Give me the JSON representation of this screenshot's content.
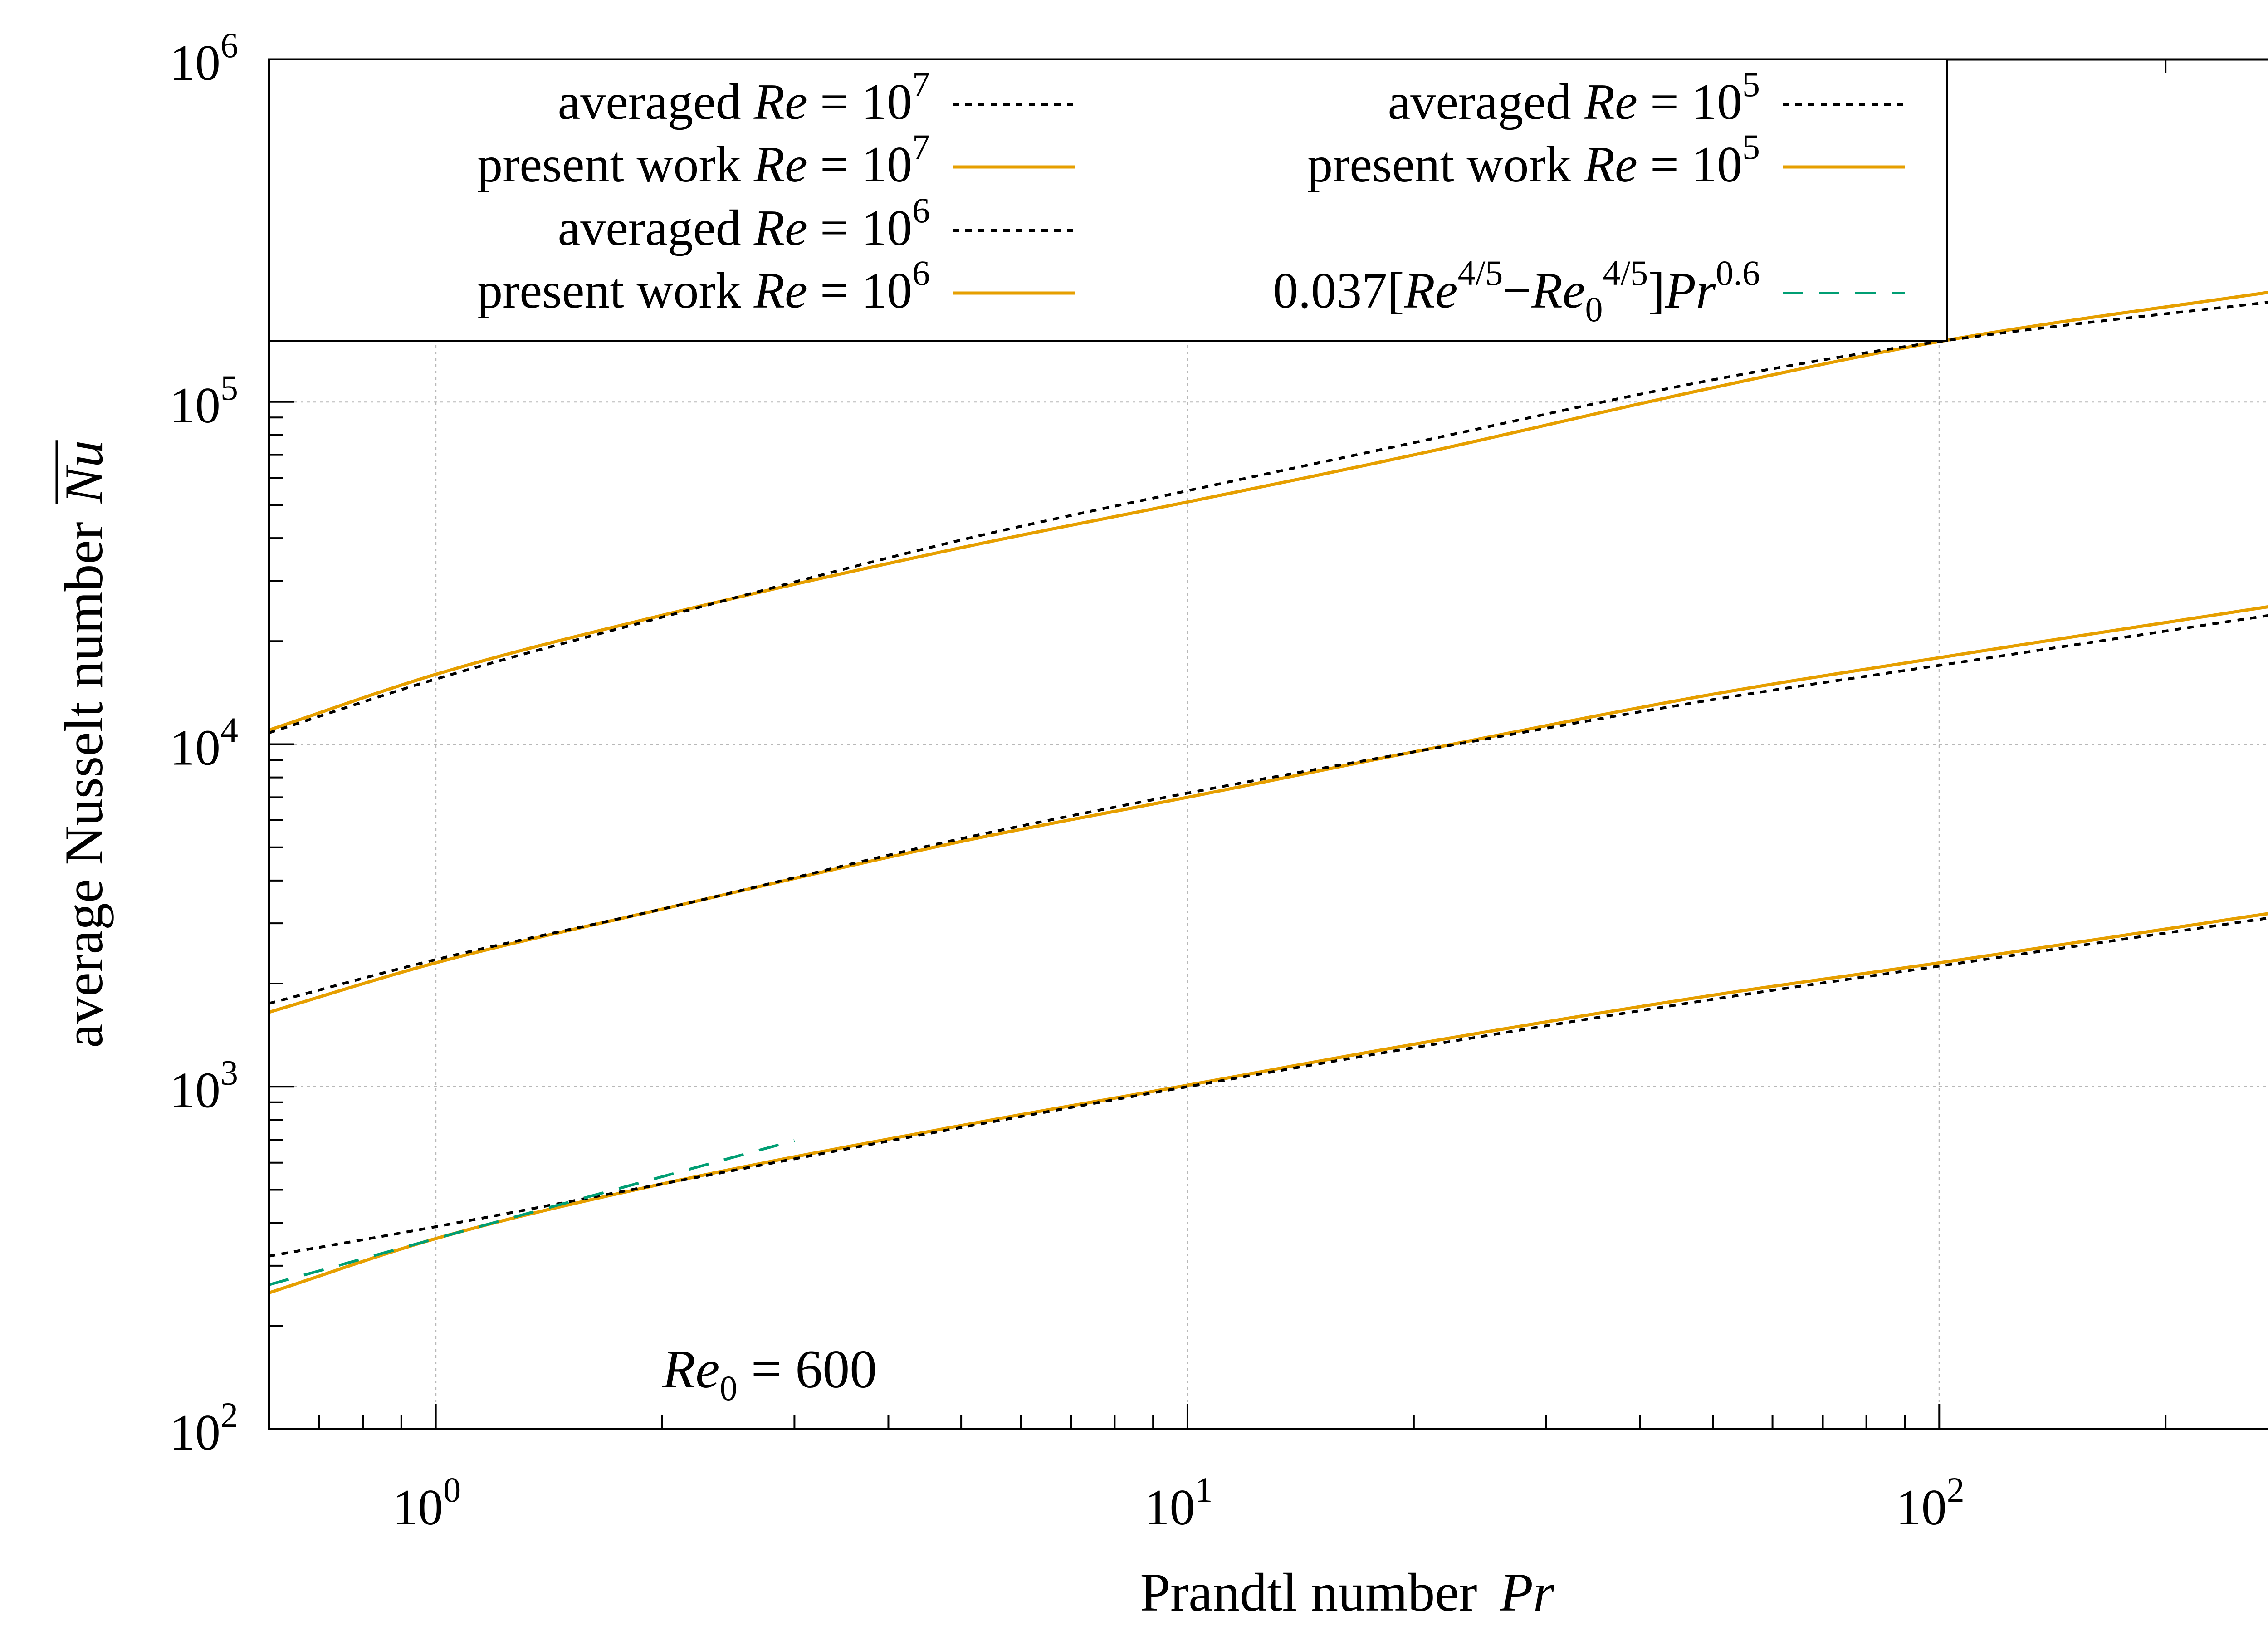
{
  "chart_data": {
    "type": "line",
    "xscale": "log",
    "yscale": "log",
    "xlim": [
      0.6,
      300
    ],
    "ylim": [
      100,
      1000000
    ],
    "grid": true,
    "legend_placement": "top",
    "xlabel": {
      "text": "Prandtl number",
      "var": "Pr"
    },
    "ylabel": {
      "text": "average Nusselt number",
      "var": "Nu"
    },
    "x_ticks": [
      {
        "value": 1,
        "base": "10",
        "exp": "0"
      },
      {
        "value": 10,
        "base": "10",
        "exp": "1"
      },
      {
        "value": 100,
        "base": "10",
        "exp": "2"
      }
    ],
    "y_ticks": [
      {
        "value": 100,
        "base": "10",
        "exp": "2"
      },
      {
        "value": 1000,
        "base": "10",
        "exp": "3"
      },
      {
        "value": 10000,
        "base": "10",
        "exp": "4"
      },
      {
        "value": 100000,
        "base": "10",
        "exp": "5"
      },
      {
        "value": 1000000,
        "base": "10",
        "exp": "6"
      }
    ],
    "annotation": {
      "var": "Re",
      "sub": "0",
      "rest": " = 600"
    },
    "legend": [
      {
        "prefix": "averaged ",
        "var": "Re",
        "mid": " = 10",
        "sup": "7",
        "style": "dotted",
        "color": "#000000"
      },
      {
        "prefix": "present work ",
        "var": "Re",
        "mid": " = 10",
        "sup": "7",
        "style": "solid",
        "color": "#E69F00"
      },
      {
        "prefix": "averaged ",
        "var": "Re",
        "mid": " = 10",
        "sup": "6",
        "style": "dotted",
        "color": "#000000"
      },
      {
        "prefix": "present work ",
        "var": "Re",
        "mid": " = 10",
        "sup": "6",
        "style": "solid",
        "color": "#E69F00"
      },
      {
        "prefix": "averaged ",
        "var": "Re",
        "mid": " = 10",
        "sup": "5",
        "style": "dotted",
        "color": "#000000"
      },
      {
        "prefix": "present work ",
        "var": "Re",
        "mid": " = 10",
        "sup": "5",
        "style": "solid",
        "color": "#E69F00"
      },
      {
        "formula": true,
        "coef": "0.037",
        "sup": "4/5",
        "sub": "0",
        "prsup": "0.6",
        "style": "dashed",
        "color": "#009E73"
      }
    ],
    "series": [
      {
        "key": "averaged_1e7",
        "style": "dotted",
        "color": "#000000",
        "x": [
          0.6,
          1,
          2,
          5,
          10,
          20,
          50,
          100,
          300
        ],
        "y": [
          10800,
          15500,
          23500,
          39500,
          55000,
          76000,
          116000,
          150000,
          200000
        ]
      },
      {
        "key": "present_1e7",
        "style": "solid",
        "color": "#E69F00",
        "x": [
          0.6,
          1,
          2,
          5,
          10,
          20,
          50,
          100,
          300
        ],
        "y": [
          11000,
          16000,
          23800,
          37500,
          51000,
          70000,
          110000,
          150000,
          215000
        ]
      },
      {
        "key": "averaged_1e6",
        "style": "dotted",
        "color": "#000000",
        "x": [
          0.6,
          1,
          2,
          5,
          10,
          20,
          50,
          100,
          300
        ],
        "y": [
          1750,
          2350,
          3300,
          5300,
          7200,
          9500,
          13500,
          17000,
          24500
        ]
      },
      {
        "key": "present_1e6",
        "style": "solid",
        "color": "#E69F00",
        "x": [
          0.6,
          1,
          2,
          5,
          10,
          20,
          50,
          100,
          300
        ],
        "y": [
          1650,
          2300,
          3300,
          5200,
          7000,
          9500,
          14000,
          17900,
          26000
        ]
      },
      {
        "key": "averaged_1e5",
        "style": "dotted",
        "color": "#000000",
        "x": [
          0.6,
          1,
          2,
          5,
          10,
          20,
          50,
          100,
          300
        ],
        "y": [
          320,
          390,
          520,
          760,
          1000,
          1300,
          1800,
          2250,
          3200
        ]
      },
      {
        "key": "present_1e5",
        "style": "solid",
        "color": "#E69F00",
        "x": [
          0.6,
          1,
          2,
          5,
          10,
          20,
          50,
          100,
          300
        ],
        "y": [
          250,
          360,
          520,
          770,
          1010,
          1330,
          1850,
          2300,
          3300
        ]
      },
      {
        "key": "correlation",
        "style": "dashed",
        "color": "#009E73",
        "x": [
          0.6,
          1,
          2,
          3
        ],
        "y": [
          264,
          360,
          546,
          696
        ]
      }
    ]
  }
}
